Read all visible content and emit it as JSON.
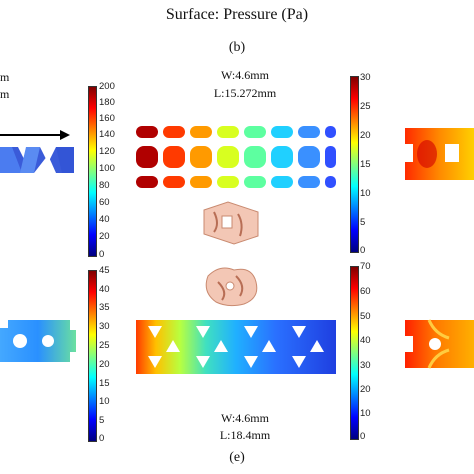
{
  "header": {
    "title": "Surface: Pressure (Pa)"
  },
  "labels": {
    "b": "(b)",
    "e": "(e)"
  },
  "panel_top": {
    "width": "W:4.6mm",
    "length": "L:15.272mm"
  },
  "panel_bottom": {
    "width": "W:4.6mm",
    "length": "L:18.4mm"
  },
  "left_partial_text": {
    "line1": "m",
    "line2": "m"
  },
  "colorbars": {
    "top_left": {
      "ticks": [
        "200",
        "180",
        "160",
        "140",
        "120",
        "100",
        "80",
        "60",
        "40",
        "20",
        "0"
      ]
    },
    "top_mid": {
      "ticks": [
        "30",
        "25",
        "20",
        "15",
        "10",
        "5",
        "0"
      ]
    },
    "bottom_left": {
      "ticks": [
        "45",
        "40",
        "35",
        "30",
        "25",
        "20",
        "15",
        "10",
        "5",
        "0"
      ]
    },
    "bottom_mid": {
      "ticks": [
        "70",
        "60",
        "50",
        "40",
        "30",
        "20",
        "10",
        "0"
      ]
    }
  },
  "colors": {
    "jet_top": "#7f0000",
    "jet_bottom": "#00007f",
    "arrow": "#000000"
  }
}
